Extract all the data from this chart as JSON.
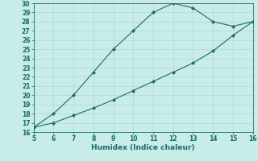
{
  "xlabel": "Humidex (Indice chaleur)",
  "xlim": [
    5,
    16
  ],
  "ylim": [
    16,
    30
  ],
  "xticks": [
    5,
    6,
    7,
    8,
    9,
    10,
    11,
    12,
    13,
    14,
    15,
    16
  ],
  "yticks": [
    16,
    17,
    18,
    19,
    20,
    21,
    22,
    23,
    24,
    25,
    26,
    27,
    28,
    29,
    30
  ],
  "line1_x": [
    5,
    6,
    7,
    8,
    9,
    10,
    11,
    12,
    13,
    14,
    15,
    16
  ],
  "line1_y": [
    16.5,
    18.0,
    20.0,
    22.5,
    25.0,
    27.0,
    29.0,
    30.0,
    29.5,
    28.0,
    27.5,
    28.0
  ],
  "line2_x": [
    5,
    6,
    7,
    8,
    9,
    10,
    11,
    12,
    13,
    14,
    15,
    16
  ],
  "line2_y": [
    16.5,
    17.0,
    17.8,
    18.6,
    19.5,
    20.5,
    21.5,
    22.5,
    23.5,
    24.8,
    26.5,
    28.0
  ],
  "line_color": "#1a6b6b",
  "bg_color": "#c8ece8",
  "grid_color": "#b0d8d4",
  "xlabel_fontsize": 6.5,
  "tick_fontsize": 5.5,
  "marker": "D",
  "marker_size": 2.0,
  "linewidth": 0.8
}
